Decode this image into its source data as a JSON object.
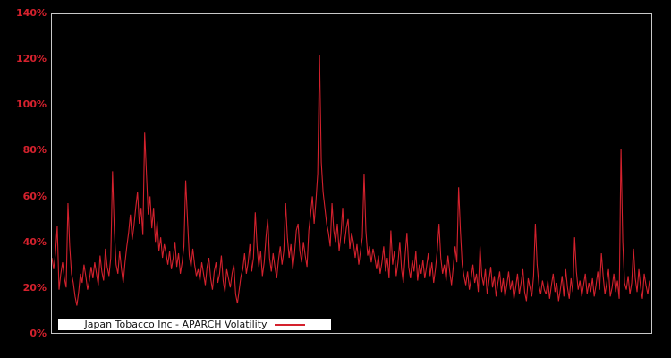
{
  "chart": {
    "background_color": "#000000",
    "plot_border_color": "#c8c8c8",
    "series_color": "#d4212d",
    "tick_label_color": "#d4212d",
    "y_ticks": [
      "0%",
      "20%",
      "40%",
      "60%",
      "80%",
      "100%",
      "120%",
      "140%"
    ],
    "legend": {
      "label": "Japan Tobacco Inc - APARCH Volatility",
      "background": "#ffffff",
      "text_color": "#111111",
      "line_sample_color": "#d4212d"
    }
  },
  "chart_data": {
    "type": "line",
    "title": "",
    "xlabel": "",
    "ylabel": "",
    "x_axis_labels": "none",
    "ylim": [
      0,
      140
    ],
    "y_unit": "%",
    "y_tick_step": 20,
    "grid": false,
    "legend_position": "bottom-left-inside",
    "series": [
      {
        "name": "Japan Tobacco Inc - APARCH Volatility",
        "color": "#d4212d",
        "values_pct": [
          33,
          28,
          35,
          47,
          19,
          26,
          31,
          24,
          20,
          57,
          38,
          26,
          22,
          16,
          12,
          18,
          26,
          22,
          30,
          25,
          19,
          23,
          29,
          24,
          31,
          26,
          21,
          34,
          27,
          23,
          37,
          29,
          25,
          33,
          71,
          45,
          30,
          26,
          36,
          28,
          22,
          31,
          38,
          44,
          52,
          41,
          47,
          55,
          62,
          48,
          55,
          43,
          88,
          70,
          52,
          60,
          46,
          55,
          40,
          49,
          36,
          42,
          33,
          39,
          35,
          30,
          36,
          28,
          33,
          40,
          29,
          35,
          26,
          31,
          38,
          67,
          50,
          34,
          29,
          37,
          30,
          25,
          28,
          23,
          31,
          26,
          21,
          29,
          33,
          24,
          19,
          27,
          31,
          22,
          26,
          34,
          23,
          18,
          28,
          24,
          20,
          26,
          30,
          17,
          13,
          19,
          25,
          28,
          35,
          26,
          31,
          39,
          27,
          33,
          53,
          38,
          29,
          36,
          25,
          31,
          42,
          50,
          33,
          27,
          35,
          29,
          24,
          32,
          38,
          30,
          36,
          57,
          42,
          33,
          39,
          28,
          35,
          45,
          48,
          36,
          31,
          40,
          34,
          29,
          45,
          52,
          60,
          48,
          58,
          70,
          122,
          75,
          62,
          55,
          48,
          44,
          38,
          57,
          45,
          40,
          48,
          36,
          43,
          55,
          39,
          46,
          50,
          37,
          44,
          40,
          33,
          39,
          30,
          36,
          42,
          70,
          45,
          34,
          38,
          31,
          37,
          33,
          28,
          34,
          26,
          31,
          38,
          27,
          33,
          24,
          45,
          30,
          36,
          25,
          31,
          40,
          28,
          22,
          34,
          44,
          29,
          24,
          32,
          27,
          36,
          23,
          30,
          26,
          32,
          24,
          29,
          35,
          25,
          31,
          22,
          28,
          36,
          48,
          33,
          26,
          30,
          23,
          34,
          27,
          21,
          29,
          38,
          31,
          64,
          45,
          30,
          25,
          21,
          27,
          19,
          24,
          30,
          22,
          26,
          18,
          38,
          25,
          21,
          28,
          17,
          23,
          29,
          20,
          25,
          16,
          22,
          27,
          18,
          24,
          16,
          21,
          27,
          19,
          23,
          15,
          20,
          26,
          17,
          22,
          28,
          18,
          14,
          24,
          20,
          16,
          25,
          48,
          30,
          21,
          17,
          23,
          19,
          17,
          23,
          15,
          21,
          26,
          18,
          22,
          14,
          19,
          25,
          16,
          28,
          20,
          15,
          24,
          18,
          42,
          27,
          19,
          23,
          16,
          21,
          26,
          17,
          22,
          18,
          24,
          16,
          21,
          27,
          19,
          35,
          25,
          17,
          22,
          28,
          16,
          20,
          26,
          18,
          23,
          15,
          81,
          40,
          22,
          19,
          25,
          17,
          22,
          37,
          24,
          18,
          28,
          20,
          15,
          26,
          21,
          17,
          23
        ]
      }
    ]
  }
}
